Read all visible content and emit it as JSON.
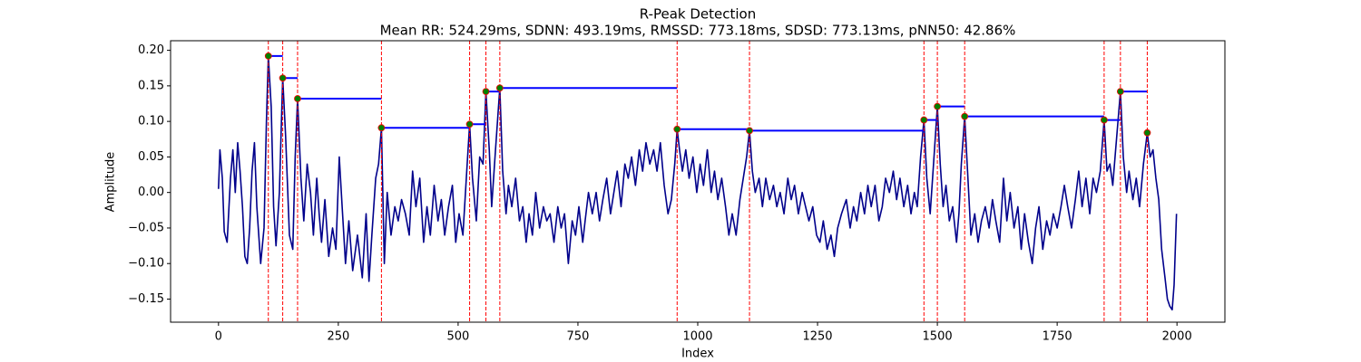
{
  "chart_data": {
    "type": "line",
    "title": "R-Peak Detection",
    "subtitle": "Mean RR: 524.29ms, SDNN: 493.19ms, RMSSD: 773.18ms, SDSD: 773.13ms, pNN50: 42.86%",
    "x_label": "Index",
    "y_label": "Amplitude",
    "xlim": [
      -100,
      2100
    ],
    "ylim": [
      -0.1825,
      0.2135
    ],
    "xticks": [
      0,
      250,
      500,
      750,
      1000,
      1250,
      1500,
      1750,
      2000
    ],
    "yticks": [
      {
        "value": -0.15,
        "label": "−0.15"
      },
      {
        "value": -0.1,
        "label": "−0.10"
      },
      {
        "value": -0.05,
        "label": "−0.05"
      },
      {
        "value": 0,
        "label": "0.00"
      },
      0.05,
      {
        "value": 0.1,
        "label": "0.10"
      },
      0.15,
      {
        "value": 0.2,
        "label": "0.20"
      }
    ],
    "series": [
      {
        "color": "#00008b",
        "x": [
          0,
          3,
          8,
          12,
          18,
          25,
          30,
          35,
          40,
          45,
          50,
          55,
          60,
          65,
          70,
          75,
          80,
          88,
          95,
          100,
          104,
          110,
          115,
          120,
          127,
          134,
          140,
          148,
          155,
          160,
          165,
          172,
          178,
          185,
          192,
          198,
          205,
          210,
          215,
          222,
          230,
          238,
          245,
          252,
          258,
          265,
          272,
          280,
          290,
          300,
          308,
          314,
          320,
          328,
          334,
          340,
          346,
          352,
          360,
          368,
          375,
          382,
          390,
          398,
          405,
          412,
          420,
          428,
          435,
          442,
          450,
          458,
          465,
          472,
          480,
          488,
          495,
          502,
          510,
          518,
          524,
          530,
          538,
          545,
          552,
          558,
          565,
          570,
          578,
          587,
          593,
          600,
          605,
          612,
          620,
          628,
          635,
          642,
          648,
          655,
          662,
          670,
          678,
          685,
          692,
          700,
          708,
          715,
          722,
          730,
          738,
          745,
          752,
          760,
          765,
          772,
          780,
          788,
          795,
          802,
          810,
          818,
          825,
          832,
          840,
          848,
          855,
          862,
          870,
          878,
          885,
          892,
          900,
          908,
          915,
          922,
          930,
          938,
          945,
          952,
          957,
          962,
          968,
          975,
          982,
          990,
          998,
          1005,
          1012,
          1020,
          1028,
          1035,
          1042,
          1050,
          1058,
          1065,
          1072,
          1080,
          1088,
          1095,
          1102,
          1108,
          1114,
          1120,
          1128,
          1135,
          1142,
          1150,
          1158,
          1165,
          1172,
          1180,
          1188,
          1195,
          1202,
          1210,
          1218,
          1225,
          1232,
          1240,
          1248,
          1255,
          1262,
          1270,
          1278,
          1285,
          1292,
          1300,
          1310,
          1318,
          1325,
          1332,
          1340,
          1348,
          1355,
          1362,
          1370,
          1378,
          1385,
          1392,
          1400,
          1408,
          1415,
          1422,
          1430,
          1438,
          1445,
          1452,
          1458,
          1465,
          1472,
          1478,
          1485,
          1492,
          1500,
          1506,
          1512,
          1518,
          1525,
          1532,
          1540,
          1545,
          1550,
          1557,
          1563,
          1570,
          1578,
          1585,
          1592,
          1600,
          1608,
          1615,
          1622,
          1630,
          1638,
          1645,
          1652,
          1660,
          1668,
          1675,
          1682,
          1690,
          1698,
          1705,
          1712,
          1720,
          1728,
          1735,
          1742,
          1750,
          1758,
          1765,
          1772,
          1780,
          1788,
          1795,
          1802,
          1810,
          1818,
          1825,
          1832,
          1840,
          1848,
          1854,
          1860,
          1866,
          1872,
          1882,
          1888,
          1895,
          1900,
          1908,
          1915,
          1922,
          1930,
          1938,
          1944,
          1950,
          1956,
          1962,
          1968,
          1975,
          1980,
          1985,
          1990,
          1994,
          1999
        ],
        "values": [
          0.005,
          0.06,
          0.02,
          -0.055,
          -0.07,
          0.02,
          0.06,
          0.0,
          0.07,
          0.03,
          -0.02,
          -0.09,
          -0.1,
          -0.05,
          0.03,
          0.07,
          -0.02,
          -0.1,
          -0.05,
          0.1,
          0.192,
          0.12,
          -0.02,
          -0.075,
          0.0,
          0.161,
          0.08,
          -0.06,
          -0.08,
          0.05,
          0.132,
          0.02,
          -0.04,
          0.04,
          0.0,
          -0.06,
          0.02,
          -0.03,
          -0.07,
          -0.01,
          -0.09,
          -0.05,
          -0.08,
          0.05,
          -0.02,
          -0.1,
          -0.04,
          -0.11,
          -0.06,
          -0.12,
          -0.03,
          -0.125,
          -0.06,
          0.02,
          0.04,
          0.091,
          -0.1,
          0.0,
          -0.06,
          -0.02,
          -0.04,
          -0.01,
          -0.03,
          -0.06,
          0.03,
          -0.02,
          0.02,
          -0.07,
          -0.02,
          -0.06,
          0.01,
          -0.04,
          -0.01,
          -0.06,
          -0.02,
          0.01,
          -0.07,
          -0.03,
          -0.06,
          0.03,
          0.096,
          0.02,
          -0.04,
          0.05,
          0.04,
          0.142,
          0.06,
          -0.02,
          0.06,
          0.147,
          0.03,
          -0.03,
          0.01,
          -0.02,
          0.02,
          -0.04,
          -0.02,
          -0.07,
          -0.03,
          -0.06,
          0.0,
          -0.05,
          -0.02,
          -0.04,
          -0.03,
          -0.07,
          -0.02,
          -0.05,
          -0.03,
          -0.1,
          -0.04,
          -0.06,
          -0.02,
          -0.07,
          -0.04,
          0.0,
          -0.03,
          0.0,
          -0.04,
          -0.01,
          0.02,
          -0.03,
          0.0,
          0.03,
          -0.02,
          0.04,
          0.02,
          0.05,
          0.01,
          0.06,
          0.03,
          0.07,
          0.04,
          0.06,
          0.03,
          0.07,
          0.01,
          -0.03,
          -0.01,
          0.04,
          0.089,
          0.06,
          0.03,
          0.06,
          0.02,
          0.05,
          0.0,
          0.04,
          0.01,
          0.06,
          0.0,
          0.03,
          -0.01,
          0.02,
          -0.02,
          -0.06,
          -0.03,
          -0.06,
          -0.01,
          0.02,
          0.05,
          0.087,
          0.03,
          0.0,
          0.02,
          -0.02,
          0.02,
          -0.01,
          0.01,
          -0.02,
          0.0,
          -0.03,
          0.02,
          -0.01,
          0.01,
          -0.03,
          0.0,
          -0.02,
          -0.04,
          -0.02,
          -0.06,
          -0.07,
          -0.04,
          -0.08,
          -0.06,
          -0.09,
          -0.05,
          -0.03,
          -0.01,
          -0.05,
          -0.02,
          -0.04,
          0.0,
          -0.03,
          0.01,
          -0.02,
          0.01,
          -0.04,
          -0.02,
          0.02,
          0.0,
          0.03,
          -0.01,
          0.02,
          -0.02,
          0.01,
          -0.03,
          0.0,
          -0.02,
          0.05,
          0.102,
          0.02,
          -0.03,
          0.04,
          0.121,
          0.04,
          -0.02,
          0.01,
          -0.04,
          -0.02,
          -0.07,
          -0.03,
          0.04,
          0.107,
          0.03,
          -0.06,
          -0.03,
          -0.07,
          -0.04,
          -0.02,
          -0.05,
          -0.01,
          -0.04,
          -0.07,
          0.02,
          -0.04,
          0.0,
          -0.05,
          -0.02,
          -0.08,
          -0.03,
          -0.07,
          -0.1,
          -0.05,
          -0.02,
          -0.08,
          -0.04,
          -0.06,
          -0.03,
          -0.05,
          -0.02,
          0.01,
          -0.02,
          -0.05,
          -0.01,
          0.03,
          -0.02,
          0.02,
          -0.03,
          0.02,
          0.0,
          0.03,
          0.102,
          0.03,
          0.04,
          0.01,
          0.06,
          0.142,
          0.05,
          0.0,
          0.03,
          -0.01,
          0.02,
          -0.02,
          0.04,
          0.084,
          0.05,
          0.06,
          0.02,
          -0.01,
          -0.08,
          -0.12,
          -0.15,
          -0.16,
          -0.165,
          -0.13,
          -0.03
        ]
      }
    ],
    "peaks": {
      "color": "#008000",
      "edge_color": "#ff0000",
      "line_color": "#ff0000",
      "level_color": "#0000ff",
      "x": [
        104,
        134,
        165,
        340,
        524,
        558,
        587,
        957,
        1108,
        1472,
        1500,
        1557,
        1848,
        1882,
        1938
      ],
      "values": [
        0.192,
        0.161,
        0.132,
        0.091,
        0.096,
        0.142,
        0.147,
        0.089,
        0.087,
        0.102,
        0.121,
        0.107,
        0.102,
        0.142,
        0.084
      ]
    }
  }
}
